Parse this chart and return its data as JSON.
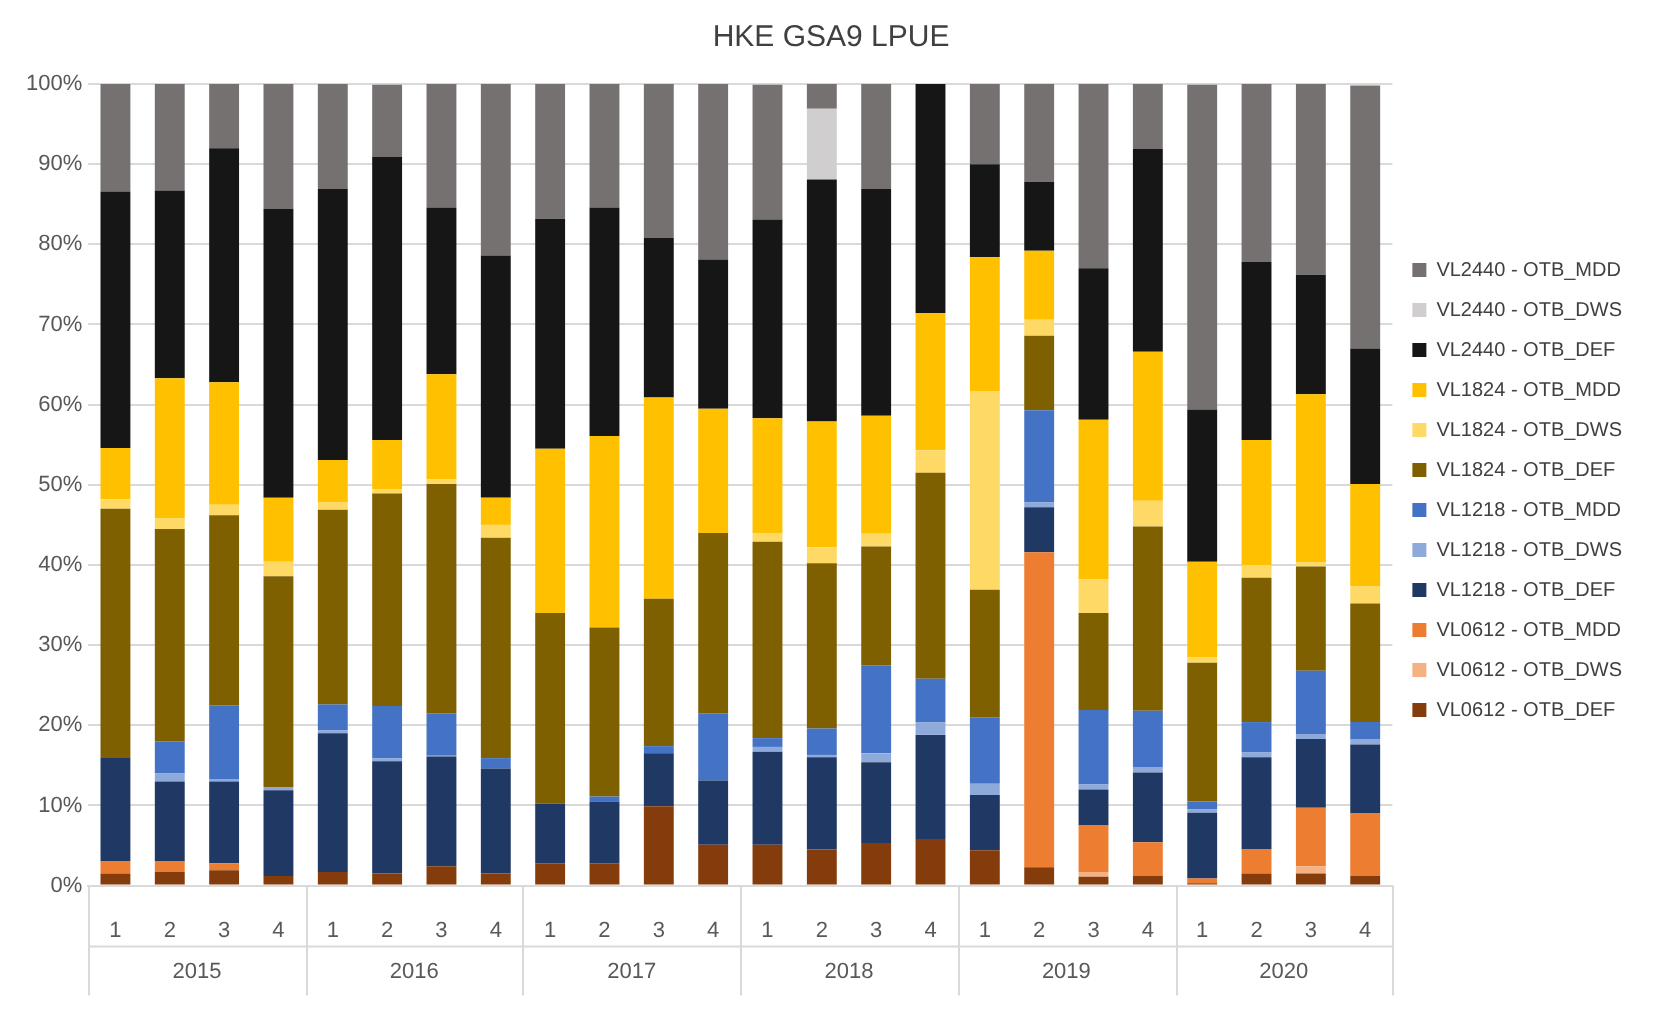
{
  "chart_data": {
    "type": "bar",
    "title": "HKE GSA9 LPUE",
    "stacked": true,
    "legend": "right",
    "grid": "y",
    "categories": [
      "1",
      "2",
      "3",
      "4",
      "1",
      "2",
      "3",
      "4",
      "1",
      "2",
      "3",
      "4",
      "1",
      "2",
      "3",
      "4",
      "1",
      "2",
      "3",
      "4",
      "1",
      "2",
      "3",
      "4"
    ],
    "annotations": [
      "2015",
      "2016",
      "2017",
      "2018",
      "2019",
      "2020"
    ],
    "ylim": [
      0,
      100
    ],
    "yticks": [
      {
        "value": 0,
        "label": "0%"
      },
      {
        "value": 10,
        "label": "10%"
      },
      {
        "value": 20,
        "label": "20%"
      },
      {
        "value": 30,
        "label": "30%"
      },
      {
        "value": 40,
        "label": "40%"
      },
      {
        "value": 50,
        "label": "50%"
      },
      {
        "value": 60,
        "label": "60%"
      },
      {
        "value": 70,
        "label": "70%"
      },
      {
        "value": 80,
        "label": "80%"
      },
      {
        "value": 90,
        "label": "90%"
      },
      {
        "value": 100,
        "label": "100%"
      }
    ],
    "series": [
      {
        "name": "VL0612 - OTB_DEF",
        "color": "#843c0c",
        "values": [
          1.5,
          1.7,
          1.9,
          1.2,
          1.7,
          1.5,
          2.4,
          1.5,
          2.8,
          2.8,
          9.9,
          5.1,
          5.1,
          4.5,
          5.3,
          5.8,
          4.4,
          2.3,
          1.1,
          1.2,
          0.3,
          1.5,
          1.5,
          1.2
        ]
      },
      {
        "name": "VL0612 - OTB_DWS",
        "color": "#f4b183",
        "values": [
          0,
          0,
          0,
          0,
          0,
          0,
          0,
          0,
          0,
          0,
          0,
          0,
          0,
          0,
          0,
          0,
          0,
          0,
          0.6,
          0,
          0,
          0,
          0.9,
          0
        ]
      },
      {
        "name": "VL0612 - OTB_MDD",
        "color": "#ed7d31",
        "values": [
          1.5,
          1.3,
          0.9,
          0,
          0,
          0,
          0,
          0,
          0,
          0,
          0,
          0,
          0,
          0,
          0,
          0,
          0,
          39.3,
          5.8,
          4.2,
          0.6,
          3,
          7.3,
          7.8
        ]
      },
      {
        "name": "VL1218 - OTB_DEF",
        "color": "#1f3864",
        "values": [
          13,
          10,
          10.2,
          10.7,
          17.3,
          14,
          13.7,
          13.1,
          7.4,
          7.7,
          6.6,
          8,
          11.6,
          11.5,
          10.1,
          13,
          6.9,
          5.6,
          4.5,
          8.7,
          8.2,
          11.5,
          8.6,
          8.6
        ]
      },
      {
        "name": "VL1218 - OTB_DWS",
        "color": "#8eaadb",
        "values": [
          0,
          1,
          0.3,
          0.4,
          0.4,
          0.4,
          0.1,
          0,
          0,
          0,
          0,
          0,
          0.6,
          0.3,
          1.1,
          1.6,
          1.4,
          0.6,
          0.6,
          0.7,
          0.4,
          0.6,
          0.6,
          0.7
        ]
      },
      {
        "name": "VL1218 - OTB_MDD",
        "color": "#4472c4",
        "values": [
          0,
          4,
          9.2,
          0,
          3.2,
          6.5,
          5.3,
          1.3,
          0,
          0.6,
          0.9,
          8.4,
          1.1,
          3.3,
          11,
          5.4,
          8.3,
          11.5,
          9.3,
          7,
          1,
          3.8,
          7.9,
          2.1
        ]
      },
      {
        "name": "VL1824 - OTB_DEF",
        "color": "#7f6000",
        "values": [
          31,
          26.5,
          23.7,
          26.3,
          24.3,
          26.5,
          28.6,
          27.5,
          23.8,
          21.1,
          18.4,
          22.5,
          24.5,
          20.6,
          14.8,
          25.7,
          15.9,
          9.3,
          12.1,
          23,
          17.3,
          18,
          13,
          14.8
        ]
      },
      {
        "name": "VL1824 - OTB_DWS",
        "color": "#ffd966",
        "values": [
          1.2,
          1.3,
          1.3,
          1.8,
          0.9,
          0.5,
          0.6,
          1.6,
          0,
          0,
          0,
          0,
          1.1,
          2,
          1.6,
          2.8,
          24.8,
          2,
          4.2,
          3.2,
          0.7,
          1.6,
          0.5,
          2.1
        ]
      },
      {
        "name": "VL1824 - OTB_MDD",
        "color": "#ffc000",
        "values": [
          6.4,
          17.5,
          15.3,
          8,
          5.3,
          6.2,
          13.1,
          3.4,
          20.5,
          23.9,
          25.1,
          15.5,
          14.3,
          15.7,
          14.7,
          17.1,
          16.7,
          8.6,
          19.9,
          18.6,
          11.9,
          15.6,
          21,
          12.8
        ]
      },
      {
        "name": "VL2440 - OTB_DEF",
        "color": "#161616",
        "values": [
          32,
          23.4,
          29.2,
          36,
          33.8,
          35.3,
          20.8,
          30.2,
          28.7,
          28.5,
          19.9,
          18.6,
          24.8,
          30.2,
          28.3,
          28.6,
          11.6,
          8.6,
          18.9,
          25.3,
          19,
          22.2,
          14.9,
          16.9
        ]
      },
      {
        "name": "VL2440 - OTB_DWS",
        "color": "#d0cece",
        "values": [
          0,
          0,
          0,
          0,
          0,
          0,
          0,
          0,
          0,
          0,
          0,
          0,
          0,
          8.8,
          0,
          0,
          0,
          0,
          0,
          0,
          0,
          0,
          0,
          0
        ]
      },
      {
        "name": "VL2440 - OTB_MDD",
        "color": "#767171",
        "values": [
          13.4,
          13.3,
          8,
          15.6,
          13.2,
          9,
          15.4,
          21.4,
          16.8,
          15.4,
          19.2,
          21.9,
          16.8,
          3.1,
          13.1,
          0,
          10,
          12.2,
          23,
          8.1,
          40.5,
          22.2,
          23.8,
          32.8
        ]
      }
    ]
  }
}
